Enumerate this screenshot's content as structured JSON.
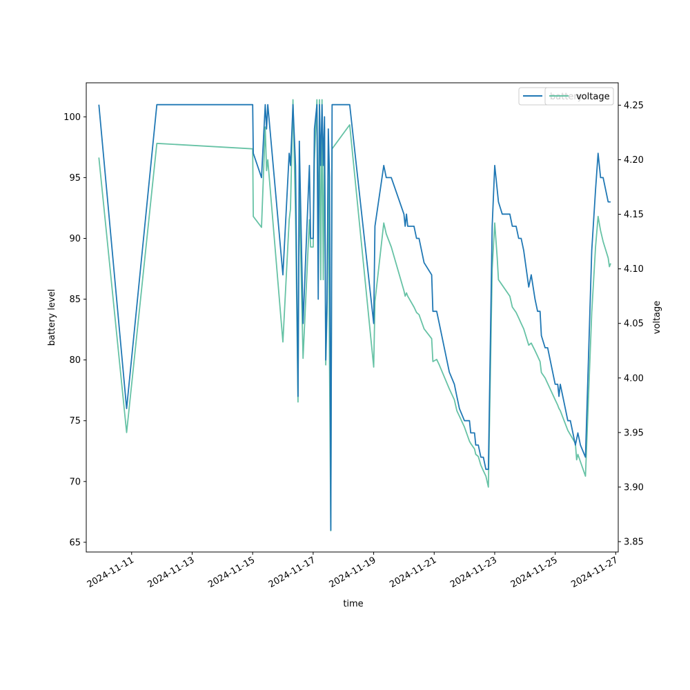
{
  "chart_data": {
    "type": "line",
    "xlabel": "time",
    "ylabel_left": "battery level",
    "ylabel_right": "voltage",
    "x_ticks": [
      "2024-11-11",
      "2024-11-13",
      "2024-11-15",
      "2024-11-17",
      "2024-11-19",
      "2024-11-21",
      "2024-11-23",
      "2024-11-25",
      "2024-11-27"
    ],
    "y_left_ticks": [
      "65",
      "70",
      "75",
      "80",
      "85",
      "90",
      "95",
      "100"
    ],
    "y_right_ticks": [
      "3.85",
      "3.90",
      "3.95",
      "4.00",
      "4.05",
      "4.10",
      "4.15",
      "4.20",
      "4.25"
    ],
    "xlim": [
      "2024-11-09T12:00",
      "2024-11-27T02:00"
    ],
    "ylim_left": [
      64.2,
      102.8
    ],
    "ylim_right": [
      3.8405,
      4.2705
    ],
    "grid": false,
    "legend_placement": "top-right",
    "legends": [
      {
        "axis": "left",
        "entries": [
          {
            "name": "battery",
            "color": "#1f77b4"
          }
        ]
      },
      {
        "axis": "right",
        "entries": [
          {
            "name": "voltage",
            "color": "#66c2a5"
          }
        ]
      }
    ],
    "series": [
      {
        "name": "battery",
        "axis": "left",
        "color": "#1f77b4",
        "points": [
          [
            "2024-11-09T22:00",
            101
          ],
          [
            "2024-11-10T20:00",
            76
          ],
          [
            "2024-11-11T20:00",
            101
          ],
          [
            "2024-11-15T00:00",
            101
          ],
          [
            "2024-11-15T00:30",
            97
          ],
          [
            "2024-11-15T07:00",
            95
          ],
          [
            "2024-11-15T10:00",
            101
          ],
          [
            "2024-11-15T11:00",
            99
          ],
          [
            "2024-11-15T12:00",
            101
          ],
          [
            "2024-11-16T00:00",
            87
          ],
          [
            "2024-11-16T05:00",
            97
          ],
          [
            "2024-11-16T06:00",
            96
          ],
          [
            "2024-11-16T08:00",
            101
          ],
          [
            "2024-11-16T10:00",
            96
          ],
          [
            "2024-11-16T12:00",
            77
          ],
          [
            "2024-11-16T13:00",
            98
          ],
          [
            "2024-11-16T16:00",
            83
          ],
          [
            "2024-11-16T21:00",
            96
          ],
          [
            "2024-11-16T22:00",
            90
          ],
          [
            "2024-11-17T00:00",
            90
          ],
          [
            "2024-11-17T01:00",
            99
          ],
          [
            "2024-11-17T03:00",
            101
          ],
          [
            "2024-11-17T04:00",
            85
          ],
          [
            "2024-11-17T05:00",
            101
          ],
          [
            "2024-11-17T06:00",
            96
          ],
          [
            "2024-11-17T07:00",
            101
          ],
          [
            "2024-11-17T08:00",
            96
          ],
          [
            "2024-11-17T09:00",
            100
          ],
          [
            "2024-11-17T10:00",
            80
          ],
          [
            "2024-11-17T11:00",
            85
          ],
          [
            "2024-11-17T12:00",
            99
          ],
          [
            "2024-11-17T13:00",
            95
          ],
          [
            "2024-11-17T14:00",
            66
          ],
          [
            "2024-11-17T15:00",
            101
          ],
          [
            "2024-11-18T05:00",
            101
          ],
          [
            "2024-11-19T00:00",
            83
          ],
          [
            "2024-11-19T01:00",
            91
          ],
          [
            "2024-11-19T08:00",
            96
          ],
          [
            "2024-11-19T10:00",
            95
          ],
          [
            "2024-11-19T14:00",
            95
          ],
          [
            "2024-11-20T00:00",
            92
          ],
          [
            "2024-11-20T01:00",
            91
          ],
          [
            "2024-11-20T02:00",
            92
          ],
          [
            "2024-11-20T03:00",
            91
          ],
          [
            "2024-11-20T08:00",
            91
          ],
          [
            "2024-11-20T10:00",
            90
          ],
          [
            "2024-11-20T12:00",
            90
          ],
          [
            "2024-11-20T16:00",
            88
          ],
          [
            "2024-11-20T22:00",
            87
          ],
          [
            "2024-11-20T23:00",
            84
          ],
          [
            "2024-11-21T02:00",
            84
          ],
          [
            "2024-11-21T04:00",
            83
          ],
          [
            "2024-11-21T12:00",
            79
          ],
          [
            "2024-11-21T16:00",
            78
          ],
          [
            "2024-11-21T18:00",
            77
          ],
          [
            "2024-11-21T20:00",
            76
          ],
          [
            "2024-11-22T00:00",
            75
          ],
          [
            "2024-11-22T04:00",
            75
          ],
          [
            "2024-11-22T05:00",
            74
          ],
          [
            "2024-11-22T08:00",
            74
          ],
          [
            "2024-11-22T09:00",
            73
          ],
          [
            "2024-11-22T11:00",
            73
          ],
          [
            "2024-11-22T13:00",
            72
          ],
          [
            "2024-11-22T15:00",
            72
          ],
          [
            "2024-11-22T17:00",
            71
          ],
          [
            "2024-11-22T19:00",
            71
          ],
          [
            "2024-11-22T22:00",
            91
          ],
          [
            "2024-11-23T00:00",
            96
          ],
          [
            "2024-11-23T02:00",
            94
          ],
          [
            "2024-11-23T03:00",
            93
          ],
          [
            "2024-11-23T06:00",
            92
          ],
          [
            "2024-11-23T12:00",
            92
          ],
          [
            "2024-11-23T14:00",
            91
          ],
          [
            "2024-11-23T17:00",
            91
          ],
          [
            "2024-11-23T19:00",
            90
          ],
          [
            "2024-11-23T21:00",
            90
          ],
          [
            "2024-11-23T23:00",
            89
          ],
          [
            "2024-11-24T03:00",
            86
          ],
          [
            "2024-11-24T05:00",
            87
          ],
          [
            "2024-11-24T08:00",
            85
          ],
          [
            "2024-11-24T10:00",
            84
          ],
          [
            "2024-11-24T12:00",
            84
          ],
          [
            "2024-11-24T13:00",
            82
          ],
          [
            "2024-11-24T16:00",
            81
          ],
          [
            "2024-11-24T18:00",
            81
          ],
          [
            "2024-11-25T00:00",
            78
          ],
          [
            "2024-11-25T02:00",
            78
          ],
          [
            "2024-11-25T03:00",
            77
          ],
          [
            "2024-11-25T04:00",
            78
          ],
          [
            "2024-11-25T08:00",
            76
          ],
          [
            "2024-11-25T10:00",
            75
          ],
          [
            "2024-11-25T12:00",
            75
          ],
          [
            "2024-11-25T16:00",
            73
          ],
          [
            "2024-11-25T18:00",
            74
          ],
          [
            "2024-11-25T20:00",
            73
          ],
          [
            "2024-11-26T00:00",
            72
          ],
          [
            "2024-11-26T05:00",
            89
          ],
          [
            "2024-11-26T08:00",
            94
          ],
          [
            "2024-11-26T10:00",
            97
          ],
          [
            "2024-11-26T12:00",
            95
          ],
          [
            "2024-11-26T14:00",
            95
          ],
          [
            "2024-11-26T18:00",
            93
          ],
          [
            "2024-11-26T20:00",
            93
          ]
        ]
      },
      {
        "name": "voltage",
        "axis": "right",
        "color": "#66c2a5",
        "points": [
          [
            "2024-11-09T22:00",
            4.202
          ],
          [
            "2024-11-10T20:00",
            3.95
          ],
          [
            "2024-11-11T20:00",
            4.215
          ],
          [
            "2024-11-15T00:00",
            4.21
          ],
          [
            "2024-11-15T00:30",
            4.148
          ],
          [
            "2024-11-15T07:00",
            4.138
          ],
          [
            "2024-11-15T10:00",
            4.23
          ],
          [
            "2024-11-15T11:00",
            4.19
          ],
          [
            "2024-11-15T12:00",
            4.2
          ],
          [
            "2024-11-16T00:00",
            4.033
          ],
          [
            "2024-11-16T05:00",
            4.145
          ],
          [
            "2024-11-16T06:00",
            4.155
          ],
          [
            "2024-11-16T08:00",
            4.255
          ],
          [
            "2024-11-16T10:00",
            4.15
          ],
          [
            "2024-11-16T12:00",
            3.978
          ],
          [
            "2024-11-16T13:00",
            4.17
          ],
          [
            "2024-11-16T16:00",
            4.018
          ],
          [
            "2024-11-16T21:00",
            4.145
          ],
          [
            "2024-11-16T22:00",
            4.12
          ],
          [
            "2024-11-17T00:00",
            4.12
          ],
          [
            "2024-11-17T01:00",
            4.2
          ],
          [
            "2024-11-17T03:00",
            4.255
          ],
          [
            "2024-11-17T04:00",
            4.12
          ],
          [
            "2024-11-17T05:00",
            4.255
          ],
          [
            "2024-11-17T06:00",
            4.09
          ],
          [
            "2024-11-17T07:00",
            4.255
          ],
          [
            "2024-11-17T08:00",
            4.09
          ],
          [
            "2024-11-17T09:00",
            4.23
          ],
          [
            "2024-11-17T10:00",
            4.012
          ],
          [
            "2024-11-17T11:00",
            4.06
          ],
          [
            "2024-11-17T12:00",
            4.2
          ],
          [
            "2024-11-17T13:00",
            4.01
          ],
          [
            "2024-11-17T14:00",
            3.86
          ],
          [
            "2024-11-17T15:00",
            4.21
          ],
          [
            "2024-11-18T05:00",
            4.232
          ],
          [
            "2024-11-19T00:00",
            4.01
          ],
          [
            "2024-11-19T01:00",
            4.07
          ],
          [
            "2024-11-19T08:00",
            4.142
          ],
          [
            "2024-11-19T10:00",
            4.132
          ],
          [
            "2024-11-19T14:00",
            4.12
          ],
          [
            "2024-11-20T00:00",
            4.08
          ],
          [
            "2024-11-20T01:00",
            4.075
          ],
          [
            "2024-11-20T02:00",
            4.078
          ],
          [
            "2024-11-20T03:00",
            4.075
          ],
          [
            "2024-11-20T08:00",
            4.065
          ],
          [
            "2024-11-20T10:00",
            4.06
          ],
          [
            "2024-11-20T12:00",
            4.058
          ],
          [
            "2024-11-20T16:00",
            4.045
          ],
          [
            "2024-11-20T22:00",
            4.036
          ],
          [
            "2024-11-20T23:00",
            4.015
          ],
          [
            "2024-11-21T02:00",
            4.017
          ],
          [
            "2024-11-21T04:00",
            4.012
          ],
          [
            "2024-11-21T12:00",
            3.99
          ],
          [
            "2024-11-21T16:00",
            3.98
          ],
          [
            "2024-11-21T18:00",
            3.97
          ],
          [
            "2024-11-21T20:00",
            3.965
          ],
          [
            "2024-11-22T00:00",
            3.955
          ],
          [
            "2024-11-22T04:00",
            3.942
          ],
          [
            "2024-11-22T05:00",
            3.94
          ],
          [
            "2024-11-22T08:00",
            3.935
          ],
          [
            "2024-11-22T09:00",
            3.93
          ],
          [
            "2024-11-22T11:00",
            3.928
          ],
          [
            "2024-11-22T13:00",
            3.92
          ],
          [
            "2024-11-22T15:00",
            3.915
          ],
          [
            "2024-11-22T17:00",
            3.91
          ],
          [
            "2024-11-22T19:00",
            3.9
          ],
          [
            "2024-11-22T22:00",
            4.1
          ],
          [
            "2024-11-23T00:00",
            4.142
          ],
          [
            "2024-11-23T02:00",
            4.11
          ],
          [
            "2024-11-23T03:00",
            4.09
          ],
          [
            "2024-11-23T06:00",
            4.085
          ],
          [
            "2024-11-23T12:00",
            4.075
          ],
          [
            "2024-11-23T14:00",
            4.065
          ],
          [
            "2024-11-23T17:00",
            4.06
          ],
          [
            "2024-11-23T19:00",
            4.055
          ],
          [
            "2024-11-23T21:00",
            4.05
          ],
          [
            "2024-11-23T23:00",
            4.045
          ],
          [
            "2024-11-24T03:00",
            4.03
          ],
          [
            "2024-11-24T05:00",
            4.032
          ],
          [
            "2024-11-24T08:00",
            4.025
          ],
          [
            "2024-11-24T10:00",
            4.02
          ],
          [
            "2024-11-24T12:00",
            4.015
          ],
          [
            "2024-11-24T13:00",
            4.005
          ],
          [
            "2024-11-24T16:00",
            4.0
          ],
          [
            "2024-11-24T18:00",
            3.995
          ],
          [
            "2024-11-25T00:00",
            3.98
          ],
          [
            "2024-11-25T02:00",
            3.975
          ],
          [
            "2024-11-25T03:00",
            3.972
          ],
          [
            "2024-11-25T04:00",
            3.97
          ],
          [
            "2024-11-25T08:00",
            3.958
          ],
          [
            "2024-11-25T10:00",
            3.952
          ],
          [
            "2024-11-25T12:00",
            3.948
          ],
          [
            "2024-11-25T16:00",
            3.94
          ],
          [
            "2024-11-25T17:00",
            3.925
          ],
          [
            "2024-11-25T18:00",
            3.93
          ],
          [
            "2024-11-26T00:00",
            3.91
          ],
          [
            "2024-11-26T05:00",
            4.06
          ],
          [
            "2024-11-26T08:00",
            4.12
          ],
          [
            "2024-11-26T10:00",
            4.148
          ],
          [
            "2024-11-26T12:00",
            4.135
          ],
          [
            "2024-11-26T14:00",
            4.125
          ],
          [
            "2024-11-26T18:00",
            4.11
          ],
          [
            "2024-11-26T19:00",
            4.102
          ],
          [
            "2024-11-26T20:00",
            4.105
          ]
        ]
      }
    ]
  }
}
